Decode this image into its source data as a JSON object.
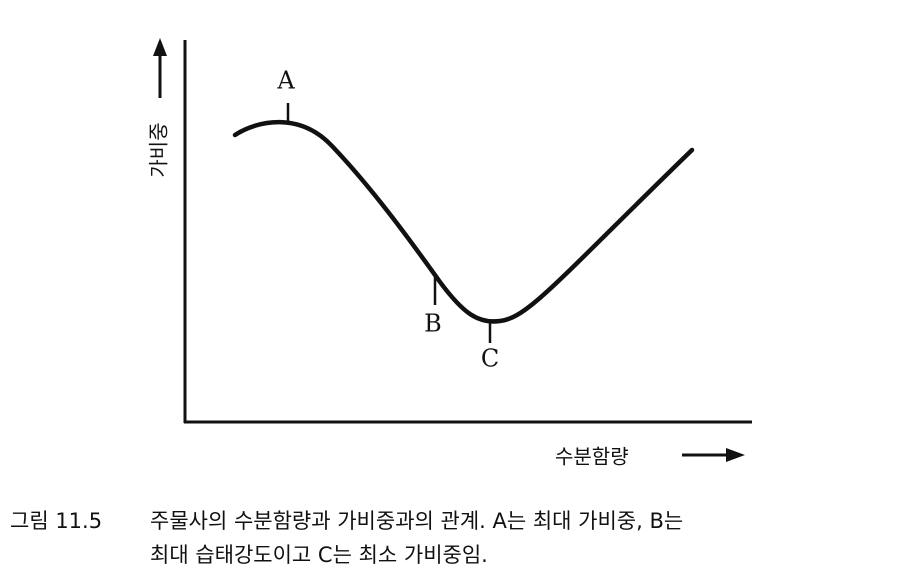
{
  "diagram": {
    "y_axis_label": "가비중",
    "x_axis_label": "수분함량",
    "points": [
      {
        "label": "A"
      },
      {
        "label": "B"
      },
      {
        "label": "C"
      }
    ],
    "caption": {
      "number": "그림 11.5",
      "line1": "주물사의 수분함량과 가비중과의 관계. A는 최대 가비중, B는",
      "line2": "최대 습태강도이고 C는 최소 가비중임."
    }
  }
}
